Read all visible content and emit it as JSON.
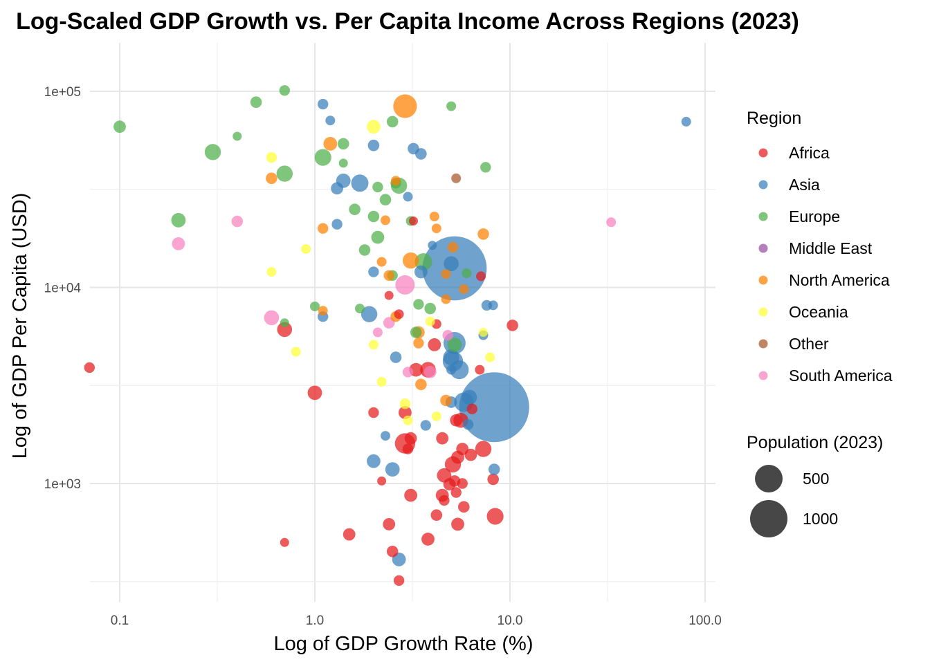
{
  "chart_data": {
    "type": "scatter",
    "title": "Log-Scaled GDP Growth vs. Per Capita Income Across Regions (2023)",
    "xlabel": "Log of GDP Growth Rate (%)",
    "ylabel": "Log of GDP Per Capita (USD)",
    "x_scale": "log10",
    "y_scale": "log10",
    "xlim": [
      0.07,
      110
    ],
    "ylim": [
      300,
      160000
    ],
    "x_ticks": [
      {
        "value": 0.1,
        "label": "0.1"
      },
      {
        "value": 1,
        "label": "1.0"
      },
      {
        "value": 10,
        "label": "10.0"
      },
      {
        "value": 100,
        "label": "100.0"
      }
    ],
    "y_ticks": [
      {
        "value": 1000,
        "label": "1e+03"
      },
      {
        "value": 10000,
        "label": "1e+04"
      },
      {
        "value": 100000,
        "label": "1e+05"
      }
    ],
    "grid": true,
    "legend_position": "right",
    "color_legend": {
      "title": "Region",
      "entries": [
        {
          "name": "Africa",
          "color": "#e41a1c"
        },
        {
          "name": "Asia",
          "color": "#377eb8"
        },
        {
          "name": "Europe",
          "color": "#4daf4a"
        },
        {
          "name": "Middle East",
          "color": "#984ea3"
        },
        {
          "name": "North America",
          "color": "#ff7f00"
        },
        {
          "name": "Oceania",
          "color": "#ffff33"
        },
        {
          "name": "Other",
          "color": "#a65628"
        },
        {
          "name": "South America",
          "color": "#f781bf"
        }
      ]
    },
    "size_legend": {
      "title": "Population (2023)",
      "entries": [
        {
          "label": "500",
          "value": 500
        },
        {
          "label": "1000",
          "value": 1000
        }
      ]
    },
    "series": [
      {
        "name": "Africa",
        "points": [
          {
            "x": 0.07,
            "y": 3900,
            "pop": 30
          },
          {
            "x": 0.7,
            "y": 6100,
            "pop": 60
          },
          {
            "x": 0.7,
            "y": 500,
            "pop": 20
          },
          {
            "x": 1.0,
            "y": 2900,
            "pop": 55
          },
          {
            "x": 1.5,
            "y": 550,
            "pop": 40
          },
          {
            "x": 2.0,
            "y": 2300,
            "pop": 30
          },
          {
            "x": 2.2,
            "y": 1030,
            "pop": 20
          },
          {
            "x": 2.4,
            "y": 9100,
            "pop": 20
          },
          {
            "x": 2.4,
            "y": 620,
            "pop": 40
          },
          {
            "x": 2.5,
            "y": 450,
            "pop": 35
          },
          {
            "x": 2.7,
            "y": 7300,
            "pop": 25
          },
          {
            "x": 2.7,
            "y": 320,
            "pop": 30
          },
          {
            "x": 2.9,
            "y": 2300,
            "pop": 45
          },
          {
            "x": 2.9,
            "y": 1600,
            "pop": 110
          },
          {
            "x": 3.0,
            "y": 1500,
            "pop": 30
          },
          {
            "x": 3.1,
            "y": 870,
            "pop": 45
          },
          {
            "x": 3.1,
            "y": 1700,
            "pop": 40
          },
          {
            "x": 3.2,
            "y": 21800,
            "pop": 20
          },
          {
            "x": 3.3,
            "y": 3800,
            "pop": 50
          },
          {
            "x": 3.8,
            "y": 3800,
            "pop": 65
          },
          {
            "x": 3.8,
            "y": 520,
            "pop": 45
          },
          {
            "x": 4.1,
            "y": 5100,
            "pop": 45
          },
          {
            "x": 4.2,
            "y": 6500,
            "pop": 25
          },
          {
            "x": 4.2,
            "y": 690,
            "pop": 35
          },
          {
            "x": 4.5,
            "y": 1700,
            "pop": 40
          },
          {
            "x": 4.5,
            "y": 870,
            "pop": 45
          },
          {
            "x": 4.6,
            "y": 1100,
            "pop": 55
          },
          {
            "x": 4.6,
            "y": 820,
            "pop": 30
          },
          {
            "x": 4.9,
            "y": 990,
            "pop": 40
          },
          {
            "x": 5.1,
            "y": 1250,
            "pop": 70
          },
          {
            "x": 5.2,
            "y": 1030,
            "pop": 35
          },
          {
            "x": 5.3,
            "y": 900,
            "pop": 30
          },
          {
            "x": 5.3,
            "y": 2100,
            "pop": 40
          },
          {
            "x": 5.4,
            "y": 1360,
            "pop": 45
          },
          {
            "x": 5.4,
            "y": 620,
            "pop": 45
          },
          {
            "x": 5.6,
            "y": 2100,
            "pop": 60
          },
          {
            "x": 5.7,
            "y": 1500,
            "pop": 40
          },
          {
            "x": 5.7,
            "y": 1000,
            "pop": 30
          },
          {
            "x": 5.8,
            "y": 760,
            "pop": 35
          },
          {
            "x": 6.3,
            "y": 1400,
            "pop": 40
          },
          {
            "x": 6.4,
            "y": 2400,
            "pop": 30
          },
          {
            "x": 7.0,
            "y": 3800,
            "pop": 25
          },
          {
            "x": 7.1,
            "y": 11400,
            "pop": 25
          },
          {
            "x": 7.3,
            "y": 1500,
            "pop": 70
          },
          {
            "x": 8.2,
            "y": 1050,
            "pop": 35
          },
          {
            "x": 8.4,
            "y": 680,
            "pop": 75
          },
          {
            "x": 10.3,
            "y": 6400,
            "pop": 35
          }
        ]
      },
      {
        "name": "Asia",
        "points": [
          {
            "x": 1.1,
            "y": 86000,
            "pop": 30
          },
          {
            "x": 1.1,
            "y": 7100,
            "pop": 30
          },
          {
            "x": 1.2,
            "y": 71000,
            "pop": 25
          },
          {
            "x": 1.3,
            "y": 32000,
            "pop": 40
          },
          {
            "x": 1.3,
            "y": 21000,
            "pop": 30
          },
          {
            "x": 1.4,
            "y": 35000,
            "pop": 55
          },
          {
            "x": 1.7,
            "y": 34000,
            "pop": 80
          },
          {
            "x": 1.9,
            "y": 7300,
            "pop": 70
          },
          {
            "x": 2.0,
            "y": 53000,
            "pop": 35
          },
          {
            "x": 2.0,
            "y": 12000,
            "pop": 30
          },
          {
            "x": 2.0,
            "y": 1300,
            "pop": 50
          },
          {
            "x": 2.3,
            "y": 1750,
            "pop": 25
          },
          {
            "x": 2.5,
            "y": 1180,
            "pop": 55
          },
          {
            "x": 2.6,
            "y": 4400,
            "pop": 35
          },
          {
            "x": 2.7,
            "y": 410,
            "pop": 50
          },
          {
            "x": 3.0,
            "y": 29000,
            "pop": 25
          },
          {
            "x": 3.2,
            "y": 51000,
            "pop": 35
          },
          {
            "x": 3.5,
            "y": 48000,
            "pop": 35
          },
          {
            "x": 3.5,
            "y": 12000,
            "pop": 45
          },
          {
            "x": 3.7,
            "y": 1980,
            "pop": 30
          },
          {
            "x": 4.0,
            "y": 16400,
            "pop": 20
          },
          {
            "x": 5.0,
            "y": 13200,
            "pop": 60
          },
          {
            "x": 5.0,
            "y": 4400,
            "pop": 70
          },
          {
            "x": 5.0,
            "y": 3800,
            "pop": 25
          },
          {
            "x": 5.0,
            "y": 2600,
            "pop": 35
          },
          {
            "x": 5.1,
            "y": 4200,
            "pop": 110
          },
          {
            "x": 5.2,
            "y": 12500,
            "pop": 1100
          },
          {
            "x": 5.2,
            "y": 5200,
            "pop": 130
          },
          {
            "x": 5.5,
            "y": 3800,
            "pop": 95
          },
          {
            "x": 5.8,
            "y": 2600,
            "pop": 100
          },
          {
            "x": 6.1,
            "y": 2000,
            "pop": 30
          },
          {
            "x": 6.2,
            "y": 2750,
            "pop": 60
          },
          {
            "x": 7.3,
            "y": 5700,
            "pop": 25
          },
          {
            "x": 7.6,
            "y": 8100,
            "pop": 30
          },
          {
            "x": 8.2,
            "y": 8100,
            "pop": 25
          },
          {
            "x": 8.3,
            "y": 2450,
            "pop": 1300
          },
          {
            "x": 8.3,
            "y": 1180,
            "pop": 35
          },
          {
            "x": 80,
            "y": 70000,
            "pop": 25
          }
        ]
      },
      {
        "name": "Europe",
        "points": [
          {
            "x": 0.1,
            "y": 66000,
            "pop": 40
          },
          {
            "x": 0.3,
            "y": 49000,
            "pop": 70
          },
          {
            "x": 0.2,
            "y": 22000,
            "pop": 55
          },
          {
            "x": 0.4,
            "y": 59000,
            "pop": 20
          },
          {
            "x": 0.5,
            "y": 88000,
            "pop": 35
          },
          {
            "x": 0.7,
            "y": 101000,
            "pop": 30
          },
          {
            "x": 0.7,
            "y": 38000,
            "pop": 70
          },
          {
            "x": 0.7,
            "y": 6600,
            "pop": 20
          },
          {
            "x": 1.0,
            "y": 8000,
            "pop": 25
          },
          {
            "x": 1.1,
            "y": 46000,
            "pop": 75
          },
          {
            "x": 1.4,
            "y": 54000,
            "pop": 35
          },
          {
            "x": 1.4,
            "y": 43000,
            "pop": 20
          },
          {
            "x": 1.6,
            "y": 25000,
            "pop": 35
          },
          {
            "x": 1.7,
            "y": 7800,
            "pop": 25
          },
          {
            "x": 1.8,
            "y": 15500,
            "pop": 35
          },
          {
            "x": 2.0,
            "y": 23000,
            "pop": 35
          },
          {
            "x": 2.1,
            "y": 32500,
            "pop": 30
          },
          {
            "x": 2.1,
            "y": 18000,
            "pop": 45
          },
          {
            "x": 2.3,
            "y": 28000,
            "pop": 35
          },
          {
            "x": 2.5,
            "y": 70000,
            "pop": 35
          },
          {
            "x": 2.5,
            "y": 11500,
            "pop": 30
          },
          {
            "x": 2.6,
            "y": 34000,
            "pop": 30
          },
          {
            "x": 2.7,
            "y": 33000,
            "pop": 70
          },
          {
            "x": 3.1,
            "y": 21800,
            "pop": 25
          },
          {
            "x": 3.3,
            "y": 5900,
            "pop": 35
          },
          {
            "x": 3.4,
            "y": 8200,
            "pop": 30
          },
          {
            "x": 3.6,
            "y": 13500,
            "pop": 80
          },
          {
            "x": 3.9,
            "y": 7800,
            "pop": 35
          },
          {
            "x": 5.0,
            "y": 84000,
            "pop": 25
          },
          {
            "x": 5.2,
            "y": 5100,
            "pop": 55
          },
          {
            "x": 6.0,
            "y": 11800,
            "pop": 25
          },
          {
            "x": 7.5,
            "y": 41000,
            "pop": 30
          }
        ]
      },
      {
        "name": "North America",
        "points": [
          {
            "x": 0.6,
            "y": 36000,
            "pop": 35
          },
          {
            "x": 1.1,
            "y": 20000,
            "pop": 30
          },
          {
            "x": 1.1,
            "y": 7600,
            "pop": 25
          },
          {
            "x": 1.2,
            "y": 54000,
            "pop": 50
          },
          {
            "x": 2.2,
            "y": 13500,
            "pop": 25
          },
          {
            "x": 2.3,
            "y": 22000,
            "pop": 25
          },
          {
            "x": 2.4,
            "y": 11500,
            "pop": 30
          },
          {
            "x": 2.6,
            "y": 7100,
            "pop": 30
          },
          {
            "x": 2.6,
            "y": 35000,
            "pop": 25
          },
          {
            "x": 2.9,
            "y": 84000,
            "pop": 150
          },
          {
            "x": 3.1,
            "y": 13700,
            "pop": 70
          },
          {
            "x": 3.4,
            "y": 5200,
            "pop": 30
          },
          {
            "x": 3.4,
            "y": 5900,
            "pop": 40
          },
          {
            "x": 3.5,
            "y": 3200,
            "pop": 35
          },
          {
            "x": 4.1,
            "y": 23000,
            "pop": 25
          },
          {
            "x": 4.2,
            "y": 20000,
            "pop": 25
          },
          {
            "x": 4.7,
            "y": 11700,
            "pop": 25
          },
          {
            "x": 4.7,
            "y": 8700,
            "pop": 25
          },
          {
            "x": 4.7,
            "y": 2650,
            "pop": 35
          },
          {
            "x": 5.1,
            "y": 16000,
            "pop": 30
          },
          {
            "x": 5.8,
            "y": 9800,
            "pop": 25
          },
          {
            "x": 7.3,
            "y": 18700,
            "pop": 35
          }
        ]
      },
      {
        "name": "Oceania",
        "points": [
          {
            "x": 0.6,
            "y": 46000,
            "pop": 30
          },
          {
            "x": 0.6,
            "y": 12000,
            "pop": 25
          },
          {
            "x": 0.8,
            "y": 4700,
            "pop": 25
          },
          {
            "x": 0.9,
            "y": 15700,
            "pop": 25
          },
          {
            "x": 2.0,
            "y": 66000,
            "pop": 50
          },
          {
            "x": 2.0,
            "y": 5100,
            "pop": 25
          },
          {
            "x": 2.2,
            "y": 3300,
            "pop": 25
          },
          {
            "x": 2.9,
            "y": 2550,
            "pop": 30
          },
          {
            "x": 3.0,
            "y": 2100,
            "pop": 25
          },
          {
            "x": 3.9,
            "y": 6700,
            "pop": 25
          },
          {
            "x": 4.2,
            "y": 2200,
            "pop": 25
          },
          {
            "x": 7.3,
            "y": 5900,
            "pop": 20
          },
          {
            "x": 7.9,
            "y": 4400,
            "pop": 25
          }
        ]
      },
      {
        "name": "Other",
        "points": [
          {
            "x": 5.3,
            "y": 36000,
            "pop": 25
          }
        ]
      },
      {
        "name": "South America",
        "points": [
          {
            "x": 0.2,
            "y": 16700,
            "pop": 45
          },
          {
            "x": 0.4,
            "y": 21700,
            "pop": 35
          },
          {
            "x": 0.6,
            "y": 7000,
            "pop": 60
          },
          {
            "x": 2.1,
            "y": 5900,
            "pop": 25
          },
          {
            "x": 2.4,
            "y": 6600,
            "pop": 35
          },
          {
            "x": 2.9,
            "y": 10300,
            "pop": 100
          },
          {
            "x": 3.0,
            "y": 3700,
            "pop": 30
          },
          {
            "x": 3.9,
            "y": 3700,
            "pop": 40
          },
          {
            "x": 4.8,
            "y": 5700,
            "pop": 30
          },
          {
            "x": 33,
            "y": 21500,
            "pop": 25
          }
        ]
      }
    ]
  }
}
